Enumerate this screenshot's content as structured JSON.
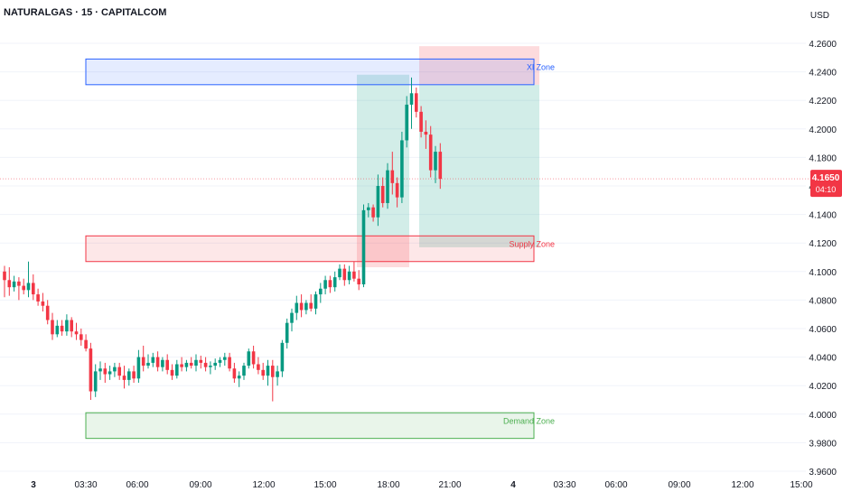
{
  "header": {
    "symbol": "NATURALGAS · 15 · CAPITALCOM"
  },
  "axis": {
    "currency": "USD"
  },
  "price_label": {
    "value": "4.1650",
    "countdown": "04:10",
    "color": "#f23645"
  },
  "colors": {
    "up": "#089981",
    "down": "#f23645",
    "grid": "#f0f3fa"
  },
  "chart_data": {
    "type": "candlestick",
    "title": "NATURALGAS · 15 · CAPITALCOM",
    "ylim": [
      3.96,
      4.27
    ],
    "y_ticks": [
      "4.2600",
      "4.2400",
      "4.2200",
      "4.2000",
      "4.1800",
      "4.1600",
      "4.1400",
      "4.1200",
      "4.1000",
      "4.0800",
      "4.0600",
      "4.0400",
      "4.0200",
      "4.0000",
      "3.9800",
      "3.9600"
    ],
    "x_ticks": [
      "3",
      "03:30",
      "06:00",
      "09:00",
      "12:00",
      "15:00",
      "18:00",
      "21:00",
      "4",
      "03:30",
      "06:00",
      "09:00",
      "12:00",
      "15:00"
    ],
    "current_price": 4.165,
    "zones": [
      {
        "name": "Xl Zone",
        "low": 4.231,
        "high": 4.249,
        "color": "#2962ff"
      },
      {
        "name": "Supply Zone",
        "low": 4.107,
        "high": 4.125,
        "color": "#f23645"
      },
      {
        "name": "Demand Zone",
        "low": 3.983,
        "high": 4.001,
        "color": "#4caf50"
      }
    ],
    "positions": [
      {
        "kind": "long",
        "entry": 4.125,
        "target": 4.238,
        "stop": 4.103
      },
      {
        "kind": "short",
        "entry": 4.231,
        "stop": 4.258,
        "target": 4.117
      }
    ],
    "candles": [
      [
        4.1,
        4.104,
        4.082,
        4.094
      ],
      [
        4.094,
        4.103,
        4.083,
        4.089
      ],
      [
        4.089,
        4.097,
        4.086,
        4.093
      ],
      [
        4.093,
        4.096,
        4.08,
        4.09
      ],
      [
        4.09,
        4.095,
        4.084,
        4.087
      ],
      [
        4.087,
        4.107,
        4.082,
        4.092
      ],
      [
        4.092,
        4.098,
        4.08,
        4.084
      ],
      [
        4.084,
        4.088,
        4.076,
        4.079
      ],
      [
        4.079,
        4.085,
        4.072,
        4.076
      ],
      [
        4.076,
        4.08,
        4.063,
        4.066
      ],
      [
        4.066,
        4.071,
        4.052,
        4.056
      ],
      [
        4.056,
        4.066,
        4.054,
        4.062
      ],
      [
        4.062,
        4.066,
        4.055,
        4.058
      ],
      [
        4.058,
        4.07,
        4.055,
        4.066
      ],
      [
        4.066,
        4.068,
        4.054,
        4.058
      ],
      [
        4.058,
        4.064,
        4.052,
        4.056
      ],
      [
        4.056,
        4.06,
        4.048,
        4.052
      ],
      [
        4.052,
        4.056,
        4.044,
        4.046
      ],
      [
        4.046,
        4.05,
        4.01,
        4.016
      ],
      [
        4.016,
        4.035,
        4.012,
        4.03
      ],
      [
        4.03,
        4.037,
        4.024,
        4.032
      ],
      [
        4.032,
        4.036,
        4.022,
        4.028
      ],
      [
        4.028,
        4.034,
        4.024,
        4.03
      ],
      [
        4.03,
        4.036,
        4.026,
        4.033
      ],
      [
        4.033,
        4.036,
        4.024,
        4.027
      ],
      [
        4.027,
        4.034,
        4.018,
        4.024
      ],
      [
        4.024,
        4.032,
        4.02,
        4.03
      ],
      [
        4.03,
        4.034,
        4.022,
        4.025
      ],
      [
        4.025,
        4.045,
        4.022,
        4.04
      ],
      [
        4.04,
        4.048,
        4.03,
        4.034
      ],
      [
        4.034,
        4.042,
        4.032,
        4.036
      ],
      [
        4.036,
        4.043,
        4.033,
        4.04
      ],
      [
        4.04,
        4.044,
        4.03,
        4.033
      ],
      [
        4.033,
        4.04,
        4.03,
        4.038
      ],
      [
        4.038,
        4.042,
        4.028,
        4.031
      ],
      [
        4.031,
        4.035,
        4.024,
        4.027
      ],
      [
        4.027,
        4.038,
        4.025,
        4.035
      ],
      [
        4.035,
        4.04,
        4.03,
        4.033
      ],
      [
        4.033,
        4.038,
        4.03,
        4.036
      ],
      [
        4.036,
        4.04,
        4.032,
        4.034
      ],
      [
        4.034,
        4.042,
        4.03,
        4.038
      ],
      [
        4.038,
        4.041,
        4.032,
        4.036
      ],
      [
        4.036,
        4.04,
        4.03,
        4.033
      ],
      [
        4.033,
        4.037,
        4.028,
        4.034
      ],
      [
        4.034,
        4.039,
        4.031,
        4.036
      ],
      [
        4.036,
        4.04,
        4.033,
        4.038
      ],
      [
        4.038,
        4.043,
        4.034,
        4.04
      ],
      [
        4.04,
        4.043,
        4.03,
        4.032
      ],
      [
        4.032,
        4.036,
        4.022,
        4.025
      ],
      [
        4.025,
        4.03,
        4.019,
        4.027
      ],
      [
        4.027,
        4.036,
        4.024,
        4.034
      ],
      [
        4.034,
        4.046,
        4.032,
        4.044
      ],
      [
        4.044,
        4.048,
        4.032,
        4.035
      ],
      [
        4.035,
        4.04,
        4.028,
        4.031
      ],
      [
        4.031,
        4.036,
        4.024,
        4.027
      ],
      [
        4.027,
        4.038,
        4.02,
        4.034
      ],
      [
        4.034,
        4.038,
        4.009,
        4.026
      ],
      [
        4.026,
        4.034,
        4.02,
        4.03
      ],
      [
        4.03,
        4.052,
        4.026,
        4.05
      ],
      [
        4.05,
        4.067,
        4.046,
        4.064
      ],
      [
        4.064,
        4.074,
        4.058,
        4.071
      ],
      [
        4.071,
        4.083,
        4.066,
        4.078
      ],
      [
        4.078,
        4.084,
        4.068,
        4.073
      ],
      [
        4.073,
        4.08,
        4.07,
        4.078
      ],
      [
        4.078,
        4.084,
        4.072,
        4.074
      ],
      [
        4.074,
        4.086,
        4.07,
        4.084
      ],
      [
        4.084,
        4.092,
        4.078,
        4.088
      ],
      [
        4.088,
        4.097,
        4.084,
        4.094
      ],
      [
        4.094,
        4.097,
        4.085,
        4.089
      ],
      [
        4.089,
        4.1,
        4.086,
        4.096
      ],
      [
        4.096,
        4.105,
        4.094,
        4.102
      ],
      [
        4.102,
        4.105,
        4.09,
        4.094
      ],
      [
        4.094,
        4.104,
        4.091,
        4.1
      ],
      [
        4.1,
        4.107,
        4.093,
        4.095
      ],
      [
        4.095,
        4.101,
        4.087,
        4.091
      ],
      [
        4.091,
        4.147,
        4.089,
        4.143
      ],
      [
        4.143,
        4.148,
        4.138,
        4.145
      ],
      [
        4.145,
        4.147,
        4.135,
        4.138
      ],
      [
        4.138,
        4.168,
        4.132,
        4.16
      ],
      [
        4.16,
        4.166,
        4.145,
        4.148
      ],
      [
        4.148,
        4.176,
        4.144,
        4.171
      ],
      [
        4.171,
        4.184,
        4.154,
        4.162
      ],
      [
        4.162,
        4.166,
        4.145,
        4.152
      ],
      [
        4.152,
        4.198,
        4.148,
        4.192
      ],
      [
        4.192,
        4.223,
        4.187,
        4.217
      ],
      [
        4.217,
        4.236,
        4.2,
        4.225
      ],
      [
        4.225,
        4.229,
        4.208,
        4.212
      ],
      [
        4.212,
        4.216,
        4.194,
        4.198
      ],
      [
        4.198,
        4.206,
        4.186,
        4.196
      ],
      [
        4.196,
        4.202,
        4.166,
        4.171
      ],
      [
        4.171,
        4.188,
        4.162,
        4.184
      ],
      [
        4.184,
        4.19,
        4.158,
        4.165
      ]
    ]
  }
}
